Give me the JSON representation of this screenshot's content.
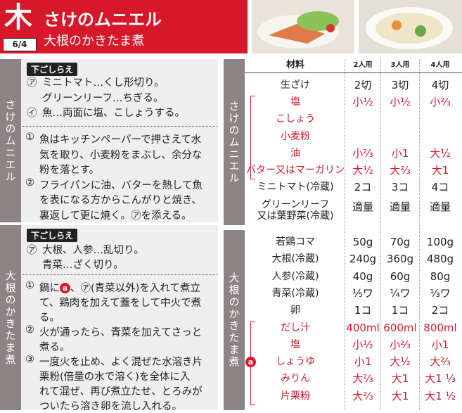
{
  "header": {
    "day": "木",
    "title": "さけのムニエル",
    "date": "6/4",
    "subtitle": "大根のかきたま煮"
  },
  "sections": [
    {
      "name": "さけのムニエル",
      "prep_label": "下ごしらえ",
      "prep": [
        {
          "mark": "㋐",
          "lines": [
            "ミニトマト…くし形切り。",
            "グリーンリーフ…ちぎる。"
          ]
        },
        {
          "mark": "㋑",
          "lines": [
            "魚…両面に塩、こしょうする。"
          ]
        }
      ],
      "steps": [
        {
          "mark": "①",
          "lines": [
            "魚はキッチンペーパーで押さえて水",
            "気を取り、小麦粉をまぶし、余分な",
            "粉を落とす。"
          ]
        },
        {
          "mark": "②",
          "lines": [
            "フライパンに油、バターを熱して魚",
            "を表になる方からこんがりと焼き、",
            "裏返して更に焼く。㋐を添える。"
          ]
        }
      ]
    },
    {
      "name": "大根のかきたま煮",
      "prep_label": "下ごしらえ",
      "prep": [
        {
          "mark": "㋐",
          "lines": [
            "大根、人参…乱切り。",
            "青菜…ざく切り。"
          ]
        }
      ],
      "steps": [
        {
          "mark": "①",
          "lines": [
            [
              "鍋に",
              "a",
              "、㋐(青菜以外)を入れて煮立"
            ],
            "て、鶏肉を加えて蓋をして中火で煮",
            "る。"
          ]
        },
        {
          "mark": "②",
          "lines": [
            "火が通ったら、青菜を加えてさっと",
            "煮る。"
          ]
        },
        {
          "mark": "③",
          "lines": [
            "一度火を止め、よく混ぜた水溶き片",
            "栗粉(倍量の水で溶く)を全体に入",
            "れて混ぜ、再び煮立たせ、とろみが",
            "ついたら溶き卵を流し入れる。"
          ]
        }
      ]
    }
  ],
  "table": {
    "header": [
      "材料",
      "2人用",
      "3人用",
      "4人用"
    ],
    "groups": [
      {
        "name": "さけのムニエル",
        "rows": [
          {
            "name": [
              "生ざけ"
            ],
            "amounts": [
              "2切",
              "3切",
              "4切"
            ]
          },
          {
            "name": [
              "塩"
            ],
            "amounts": [
              "小½",
              "小½",
              "小⅔"
            ],
            "color": "#d7182a"
          },
          {
            "name": [
              "こしょう"
            ],
            "amounts": null,
            "color": "#d7182a"
          },
          {
            "name": [
              "小麦粉"
            ],
            "amounts": null,
            "color": "#d7182a"
          },
          {
            "name": [
              "油"
            ],
            "amounts": [
              "小⅔",
              "小1",
              "大½"
            ],
            "color": "#d7182a"
          },
          {
            "name": [
              "バター又はマーガリン"
            ],
            "amounts": [
              "大½",
              "大⅔",
              "大1"
            ],
            "color": "#d7182a"
          },
          {
            "name": [
              "ミニトマト(冷蔵)"
            ],
            "amounts": [
              "2コ",
              "3コ",
              "4コ"
            ]
          },
          {
            "name": [
              "グリーンリーフ",
              "又は葉野菜(冷蔵)"
            ],
            "amounts": [
              "適量",
              "適量",
              "適量"
            ]
          }
        ]
      },
      {
        "name": "大根のかきたま煮",
        "marker": "a",
        "rows": [
          {
            "name": [
              "若鶏コマ"
            ],
            "amounts": [
              "50g",
              "70g",
              "100g"
            ]
          },
          {
            "name": [
              "大根(冷蔵)"
            ],
            "amounts": [
              "240g",
              "360g",
              "480g"
            ]
          },
          {
            "name": [
              "人参(冷蔵)"
            ],
            "amounts": [
              "40g",
              "60g",
              "80g"
            ]
          },
          {
            "name": [
              "青菜(冷蔵)"
            ],
            "amounts": [
              "⅕ワ",
              "¼ワ",
              "⅓ワ"
            ]
          },
          {
            "name": [
              "卵"
            ],
            "amounts": [
              "1コ",
              "1コ",
              "2コ"
            ]
          },
          {
            "name": [
              "だし汁"
            ],
            "amounts": [
              "400ml",
              "600ml",
              "800ml"
            ],
            "color": "#d7182a"
          },
          {
            "name": [
              "塩"
            ],
            "amounts": [
              "小½",
              "小⅔",
              "小1"
            ],
            "color": "#d7182a"
          },
          {
            "name": [
              "しょうゆ"
            ],
            "amounts": [
              "小1",
              "大½",
              "大⅔"
            ],
            "color": "#d7182a"
          },
          {
            "name": [
              "みりん"
            ],
            "amounts": [
              "大⅔",
              "大1",
              "大1 ⅓"
            ],
            "color": "#d7182a"
          },
          {
            "name": [
              "片栗粉"
            ],
            "amounts": [
              "大⅔",
              "大1",
              "大1 ½"
            ],
            "color": "#d7182a"
          }
        ]
      }
    ]
  }
}
